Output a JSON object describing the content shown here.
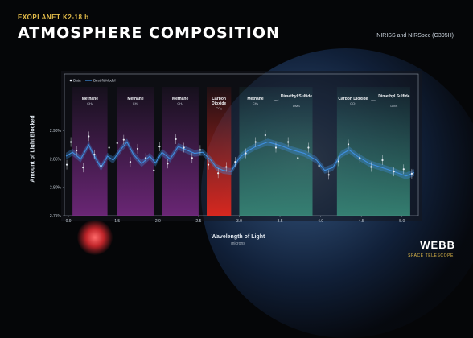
{
  "header": {
    "kicker": "EXOPLANET K2-18 b",
    "title": "ATMOSPHERE COMPOSITION",
    "instruments": "NIRISS and NIRSpec (G395H)"
  },
  "branding": {
    "name": "WEBB",
    "sub": "SPACE TELESCOPE"
  },
  "colors": {
    "model_line": "#3f8fe0",
    "data_points": "#e8eef5",
    "methane": "#7a2a86",
    "carbon_dioxide": "#e0281e",
    "dms": "#3a8f7c",
    "kicker": "#e5bd4a"
  },
  "chart_data": {
    "type": "line",
    "xlabel": "Wavelength of Light",
    "xunit": "microns",
    "ylabel": "Amount of Light Blocked",
    "xlim": [
      0.85,
      5.2
    ],
    "ylim": [
      2.75,
      3.0
    ],
    "xticks": [
      "0.9",
      "1.5",
      "2.0",
      "2.5",
      "3.0",
      "3.5",
      "4.0",
      "4.5",
      "5.0"
    ],
    "yticks": [
      "2.75%",
      "2.80%",
      "2.85%",
      "2.90%"
    ],
    "legend": [
      "Data",
      "Best-fit Model"
    ],
    "bands": [
      {
        "label": "Methane",
        "sub": "CH₄",
        "x0": 0.95,
        "x1": 1.38,
        "kind": "methane"
      },
      {
        "label": "Methane",
        "sub": "CH₄",
        "x0": 1.5,
        "x1": 1.95,
        "kind": "methane"
      },
      {
        "label": "Methane",
        "sub": "CH₄",
        "x0": 2.05,
        "x1": 2.5,
        "kind": "methane"
      },
      {
        "label": "Carbon Dioxide",
        "sub": "CO₂",
        "x0": 2.6,
        "x1": 2.9,
        "kind": "carbon_dioxide"
      },
      {
        "label": "Methane",
        "sub": "CH₄",
        "and": "Dimethyl Sulfide",
        "and_sub": "DMS",
        "x0": 3.0,
        "x1": 3.9,
        "kind": "dms"
      },
      {
        "label": "Carbon Dioxide",
        "sub": "CO₂",
        "and": "Dimethyl Sulfide",
        "and_sub": "DMS",
        "x0": 4.2,
        "x1": 5.1,
        "kind": "dms"
      }
    ],
    "series": [
      {
        "name": "Best-fit Model",
        "x": [
          0.87,
          0.95,
          1.05,
          1.15,
          1.2,
          1.3,
          1.38,
          1.45,
          1.55,
          1.62,
          1.7,
          1.8,
          1.9,
          1.97,
          2.05,
          2.15,
          2.25,
          2.35,
          2.45,
          2.55,
          2.65,
          2.72,
          2.8,
          2.9,
          3.0,
          3.1,
          3.2,
          3.35,
          3.5,
          3.65,
          3.8,
          3.95,
          4.05,
          4.15,
          4.25,
          4.35,
          4.45,
          4.6,
          4.75,
          4.9,
          5.05,
          5.15
        ],
        "y": [
          2.855,
          2.862,
          2.85,
          2.875,
          2.86,
          2.835,
          2.855,
          2.848,
          2.868,
          2.88,
          2.858,
          2.842,
          2.855,
          2.843,
          2.862,
          2.85,
          2.872,
          2.866,
          2.86,
          2.862,
          2.848,
          2.835,
          2.83,
          2.828,
          2.852,
          2.864,
          2.872,
          2.88,
          2.874,
          2.866,
          2.86,
          2.848,
          2.83,
          2.835,
          2.858,
          2.866,
          2.855,
          2.842,
          2.835,
          2.828,
          2.82,
          2.826
        ]
      },
      {
        "name": "Data",
        "x": [
          0.88,
          0.93,
          1.0,
          1.08,
          1.15,
          1.22,
          1.3,
          1.4,
          1.5,
          1.58,
          1.66,
          1.75,
          1.85,
          1.95,
          2.02,
          2.12,
          2.22,
          2.32,
          2.42,
          2.52,
          2.62,
          2.74,
          2.84,
          2.95,
          3.08,
          3.2,
          3.32,
          3.45,
          3.6,
          3.72,
          3.85,
          3.98,
          4.1,
          4.22,
          4.34,
          4.48,
          4.62,
          4.76,
          4.9,
          5.02,
          5.12
        ],
        "y": [
          2.84,
          2.88,
          2.865,
          2.835,
          2.89,
          2.858,
          2.838,
          2.87,
          2.878,
          2.884,
          2.845,
          2.868,
          2.852,
          2.83,
          2.872,
          2.842,
          2.885,
          2.87,
          2.852,
          2.866,
          2.84,
          2.825,
          2.836,
          2.845,
          2.86,
          2.88,
          2.892,
          2.87,
          2.88,
          2.852,
          2.87,
          2.838,
          2.822,
          2.846,
          2.876,
          2.852,
          2.836,
          2.848,
          2.828,
          2.832,
          2.824
        ]
      }
    ]
  }
}
